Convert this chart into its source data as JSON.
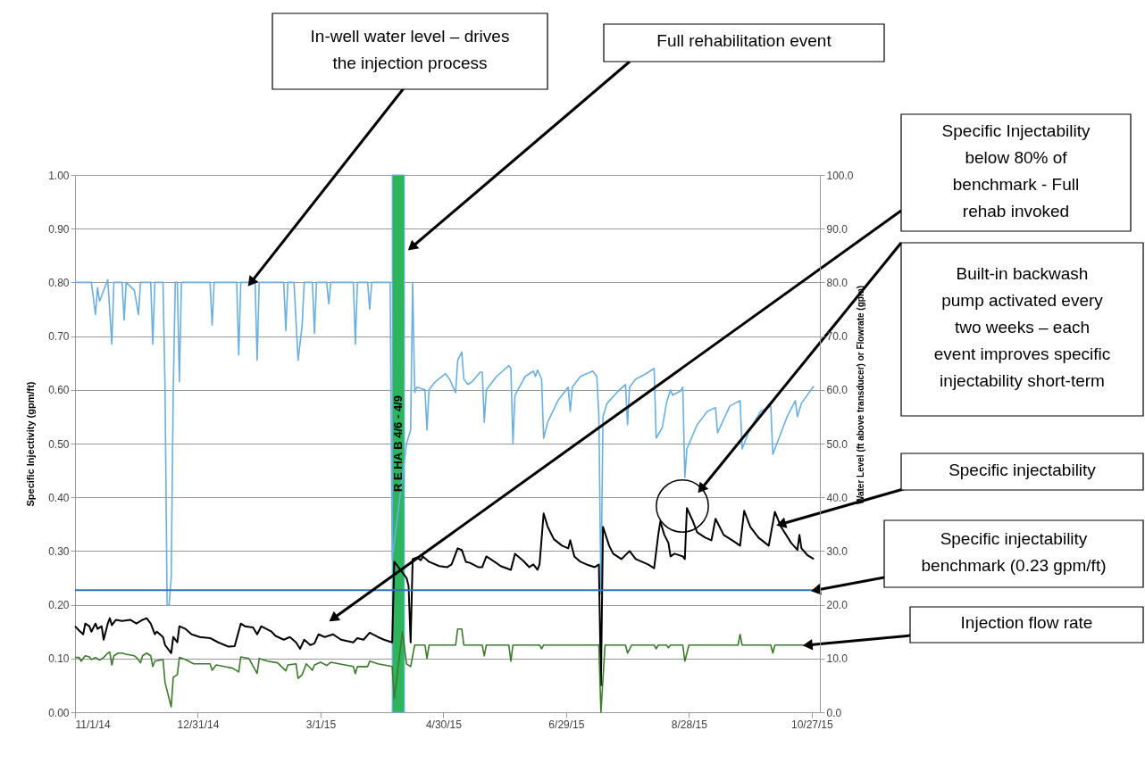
{
  "chart_data": {
    "type": "line",
    "ylabel": "Specific Injectivity (gpm/ft)",
    "y2label": "Water Level (ft above transducer) or Flowrate (gpm)",
    "xlim": [
      "2014-11-01",
      "2015-10-31"
    ],
    "xticks": [
      {
        "value": "2014-11-01",
        "label": "11/1/14"
      },
      {
        "value": "2014-12-31",
        "label": "12/31/14"
      },
      {
        "value": "2015-03-01",
        "label": "3/1/15"
      },
      {
        "value": "2015-04-30",
        "label": "4/30/15"
      },
      {
        "value": "2015-06-29",
        "label": "6/29/15"
      },
      {
        "value": "2015-08-28",
        "label": "8/28/15"
      },
      {
        "value": "2015-10-27",
        "label": "10/27/15"
      }
    ],
    "ylim": [
      0,
      1
    ],
    "yticks": [
      {
        "value": 0,
        "label": "0.00"
      },
      {
        "value": 0.1,
        "label": "0.10"
      },
      {
        "value": 0.2,
        "label": "0.20"
      },
      {
        "value": 0.3,
        "label": "0.30"
      },
      {
        "value": 0.4,
        "label": "0.40"
      },
      {
        "value": 0.5,
        "label": "0.50"
      },
      {
        "value": 0.6,
        "label": "0.60"
      },
      {
        "value": 0.7,
        "label": "0.70"
      },
      {
        "value": 0.8,
        "label": "0.80"
      },
      {
        "value": 0.9,
        "label": "0.90"
      },
      {
        "value": 1,
        "label": "1.00"
      }
    ],
    "y2lim": [
      0,
      100
    ],
    "y2ticks": [
      {
        "value": 0,
        "label": "0.0"
      },
      {
        "value": 10,
        "label": "10.0"
      },
      {
        "value": 20,
        "label": "20.0"
      },
      {
        "value": 30,
        "label": "30.0"
      },
      {
        "value": 40,
        "label": "40.0"
      },
      {
        "value": 50,
        "label": "50.0"
      },
      {
        "value": 60,
        "label": "60.0"
      },
      {
        "value": 70,
        "label": "70.0"
      },
      {
        "value": 80,
        "label": "80.0"
      },
      {
        "value": 90,
        "label": "90.0"
      },
      {
        "value": 100,
        "label": "100.0"
      }
    ],
    "grid": "y",
    "marker": "none",
    "line_style": "solid",
    "series": [
      {
        "color": "#6aafe0",
        "axis": "y2",
        "x": [
          "2014-11-01",
          "2014-11-09",
          "2014-11-11",
          "2014-11-12",
          "2014-11-13",
          "2014-11-15",
          "2014-11-17",
          "2014-11-19",
          "2014-11-20",
          "2014-11-24",
          "2014-11-25",
          "2014-11-26",
          "2014-11-30",
          "2014-12-02",
          "2014-12-03",
          "2014-12-08",
          "2014-12-09",
          "2014-12-10",
          "2014-12-14",
          "2014-12-15",
          "2014-12-16",
          "2014-12-17",
          "2014-12-18",
          "2014-12-19",
          "2014-12-20",
          "2014-12-21",
          "2014-12-22",
          "2014-12-23",
          "2015-01-06",
          "2015-01-07",
          "2015-01-08",
          "2015-01-19",
          "2015-01-20",
          "2015-01-21",
          "2015-01-28",
          "2015-01-29",
          "2015-01-30",
          "2015-02-11",
          "2015-02-12",
          "2015-02-13",
          "2015-02-16",
          "2015-02-18",
          "2015-02-20",
          "2015-02-21",
          "2015-02-25",
          "2015-02-26",
          "2015-02-27",
          "2015-03-04",
          "2015-03-05",
          "2015-03-06",
          "2015-03-17",
          "2015-03-18",
          "2015-03-19",
          "2015-03-24",
          "2015-03-25",
          "2015-03-26",
          "2015-04-04",
          "2015-04-05",
          "2015-04-12",
          "2015-04-14",
          "2015-04-15",
          "2015-04-16",
          "2015-04-17",
          "2015-04-21",
          "2015-04-22",
          "2015-04-23",
          "2015-04-26",
          "2015-05-01",
          "2015-05-03",
          "2015-05-06",
          "2015-05-07",
          "2015-05-09",
          "2015-05-10",
          "2015-05-12",
          "2015-05-14",
          "2015-05-18",
          "2015-05-19",
          "2015-05-20",
          "2015-05-21",
          "2015-05-26",
          "2015-06-01",
          "2015-06-02",
          "2015-06-03",
          "2015-06-04",
          "2015-06-09",
          "2015-06-13",
          "2015-06-14",
          "2015-06-15",
          "2015-06-17",
          "2015-06-18",
          "2015-06-20",
          "2015-06-25",
          "2015-06-30",
          "2015-07-01",
          "2015-07-02",
          "2015-07-06",
          "2015-07-12",
          "2015-07-14",
          "2015-07-15",
          "2015-07-16",
          "2015-07-17",
          "2015-07-19",
          "2015-07-25",
          "2015-07-28",
          "2015-07-29",
          "2015-07-30",
          "2015-08-02",
          "2015-08-07",
          "2015-08-11",
          "2015-08-12",
          "2015-08-15",
          "2015-08-17",
          "2015-08-19",
          "2015-08-20",
          "2015-08-24",
          "2015-08-25",
          "2015-08-26",
          "2015-08-27",
          "2015-09-01",
          "2015-09-06",
          "2015-09-10",
          "2015-09-11",
          "2015-09-14",
          "2015-09-17",
          "2015-09-22",
          "2015-09-23",
          "2015-09-26",
          "2015-10-02",
          "2015-10-07",
          "2015-10-08",
          "2015-10-10",
          "2015-10-15",
          "2015-10-19",
          "2015-10-20",
          "2015-10-22",
          "2015-10-28"
        ],
        "values": [
          80,
          80,
          74,
          79,
          76.5,
          78.5,
          80.5,
          68.5,
          80,
          80,
          73,
          80,
          78.5,
          74,
          80,
          80,
          68.5,
          80,
          80,
          60,
          20,
          20,
          25,
          60,
          80,
          80,
          61.5,
          80,
          80,
          72,
          80,
          80,
          66.5,
          80,
          80,
          65.5,
          80,
          80,
          71,
          80,
          80,
          65.5,
          72,
          80,
          80,
          70.5,
          80,
          80,
          76,
          80,
          80,
          68.5,
          80,
          80,
          75,
          80,
          80,
          28.5,
          50,
          52.5,
          80,
          59.5,
          60.5,
          60,
          52.5,
          60,
          61.5,
          63,
          62,
          59.5,
          65.5,
          67,
          62,
          61,
          61.5,
          63.3,
          63.3,
          54,
          60,
          62.5,
          64.5,
          64,
          50,
          59,
          62.5,
          63.5,
          62.5,
          63.7,
          62,
          51,
          54,
          58,
          60.5,
          56,
          60.5,
          62.5,
          63.5,
          62.5,
          55,
          22,
          55,
          57.5,
          60,
          61,
          53.5,
          60.5,
          62,
          63,
          64,
          51,
          53,
          57.5,
          60,
          59,
          59.8,
          60.5,
          43.7,
          49,
          53.5,
          56,
          56.7,
          52,
          54.5,
          57,
          58,
          49,
          52,
          56,
          57,
          48,
          50,
          55,
          58,
          55,
          57.5,
          60.7
        ]
      },
      {
        "color": "#000000",
        "x": [
          "2014-11-01",
          "2014-11-03",
          "2014-11-05",
          "2014-11-06",
          "2014-11-08",
          "2014-11-09",
          "2014-11-11",
          "2014-11-12",
          "2014-11-14",
          "2014-11-15",
          "2014-11-17",
          "2014-11-18",
          "2014-11-19",
          "2014-11-21",
          "2014-11-24",
          "2014-11-28",
          "2014-12-01",
          "2014-12-04",
          "2014-12-06",
          "2014-12-08",
          "2014-12-10",
          "2014-12-11",
          "2014-12-14",
          "2014-12-15",
          "2014-12-18",
          "2014-12-19",
          "2014-12-21",
          "2014-12-22",
          "2014-12-25",
          "2014-12-28",
          "2015-01-01",
          "2015-01-06",
          "2015-01-10",
          "2015-01-15",
          "2015-01-18",
          "2015-01-21",
          "2015-01-23",
          "2015-01-27",
          "2015-01-29",
          "2015-01-31",
          "2015-02-05",
          "2015-02-07",
          "2015-02-11",
          "2015-02-14",
          "2015-02-17",
          "2015-02-19",
          "2015-02-21",
          "2015-02-24",
          "2015-02-26",
          "2015-02-28",
          "2015-03-03",
          "2015-03-07",
          "2015-03-11",
          "2015-03-17",
          "2015-03-19",
          "2015-03-22",
          "2015-03-25",
          "2015-03-29",
          "2015-04-01",
          "2015-04-05",
          "2015-04-06",
          "2015-04-12",
          "2015-04-13",
          "2015-04-14",
          "2015-04-15",
          "2015-04-17",
          "2015-04-19",
          "2015-04-20",
          "2015-04-23",
          "2015-04-28",
          "2015-05-02",
          "2015-05-04",
          "2015-05-07",
          "2015-05-09",
          "2015-05-11",
          "2015-05-13",
          "2015-05-17",
          "2015-05-19",
          "2015-05-21",
          "2015-05-25",
          "2015-05-28",
          "2015-06-02",
          "2015-06-04",
          "2015-06-08",
          "2015-06-11",
          "2015-06-13",
          "2015-06-15",
          "2015-06-16",
          "2015-06-18",
          "2015-06-20",
          "2015-06-23",
          "2015-06-27",
          "2015-06-30",
          "2015-07-01",
          "2015-07-03",
          "2015-07-06",
          "2015-07-09",
          "2015-07-13",
          "2015-07-15",
          "2015-07-16",
          "2015-07-17",
          "2015-07-20",
          "2015-07-22",
          "2015-07-26",
          "2015-07-30",
          "2015-08-02",
          "2015-08-08",
          "2015-08-11",
          "2015-08-13",
          "2015-08-14",
          "2015-08-16",
          "2015-08-18",
          "2015-08-19",
          "2015-08-21",
          "2015-08-25",
          "2015-08-26",
          "2015-08-27",
          "2015-08-30",
          "2015-09-01",
          "2015-09-05",
          "2015-09-08",
          "2015-09-10",
          "2015-09-14",
          "2015-09-19",
          "2015-09-22",
          "2015-09-24",
          "2015-09-27",
          "2015-10-01",
          "2015-10-06",
          "2015-10-09",
          "2015-10-12",
          "2015-10-17",
          "2015-10-20",
          "2015-10-21",
          "2015-10-22",
          "2015-10-25",
          "2015-10-28"
        ],
        "values": [
          0.16,
          0.152,
          0.145,
          0.165,
          0.16,
          0.15,
          0.165,
          0.155,
          0.16,
          0.135,
          0.165,
          0.175,
          0.162,
          0.172,
          0.17,
          0.172,
          0.165,
          0.172,
          0.175,
          0.165,
          0.145,
          0.15,
          0.14,
          0.125,
          0.11,
          0.14,
          0.13,
          0.16,
          0.155,
          0.145,
          0.14,
          0.138,
          0.13,
          0.122,
          0.123,
          0.165,
          0.16,
          0.158,
          0.145,
          0.16,
          0.15,
          0.142,
          0.135,
          0.14,
          0.13,
          0.118,
          0.135,
          0.125,
          0.128,
          0.145,
          0.14,
          0.145,
          0.135,
          0.13,
          0.138,
          0.135,
          0.148,
          0.14,
          0.135,
          0.13,
          0.28,
          0.25,
          0.235,
          0.13,
          0.285,
          0.288,
          0.283,
          0.29,
          0.28,
          0.272,
          0.27,
          0.275,
          0.305,
          0.302,
          0.28,
          0.278,
          0.27,
          0.27,
          0.29,
          0.28,
          0.272,
          0.265,
          0.295,
          0.282,
          0.27,
          0.275,
          0.265,
          0.275,
          0.37,
          0.345,
          0.322,
          0.31,
          0.305,
          0.32,
          0.29,
          0.28,
          0.275,
          0.27,
          0.275,
          0.05,
          0.345,
          0.31,
          0.295,
          0.285,
          0.3,
          0.285,
          0.275,
          0.268,
          0.33,
          0.355,
          0.33,
          0.315,
          0.29,
          0.295,
          0.29,
          0.285,
          0.38,
          0.355,
          0.335,
          0.325,
          0.32,
          0.36,
          0.33,
          0.318,
          0.31,
          0.375,
          0.345,
          0.325,
          0.31,
          0.373,
          0.345,
          0.315,
          0.302,
          0.33,
          0.305,
          0.292,
          0.285
        ]
      },
      {
        "color": "#3a7a2a",
        "axis": "y2",
        "x": [
          "2014-11-01",
          "2014-11-03",
          "2014-11-04",
          "2014-11-06",
          "2014-11-08",
          "2014-11-09",
          "2014-11-11",
          "2014-11-13",
          "2014-11-15",
          "2014-11-17",
          "2014-11-18",
          "2014-11-19",
          "2014-11-20",
          "2014-11-22",
          "2014-11-24",
          "2014-11-26",
          "2014-11-30",
          "2014-12-01",
          "2014-12-03",
          "2014-12-04",
          "2014-12-06",
          "2014-12-08",
          "2014-12-09",
          "2014-12-10",
          "2014-12-14",
          "2014-12-15",
          "2014-12-18",
          "2014-12-19",
          "2014-12-21",
          "2014-12-22",
          "2014-12-25",
          "2014-12-29",
          "2015-01-06",
          "2015-01-07",
          "2015-01-09",
          "2015-01-17",
          "2015-01-20",
          "2015-01-21",
          "2015-01-25",
          "2015-01-29",
          "2015-01-30",
          "2015-02-03",
          "2015-02-08",
          "2015-02-12",
          "2015-02-13",
          "2015-02-17",
          "2015-02-18",
          "2015-02-20",
          "2015-02-22",
          "2015-02-25",
          "2015-02-26",
          "2015-03-01",
          "2015-03-04",
          "2015-03-06",
          "2015-03-10",
          "2015-03-17",
          "2015-03-18",
          "2015-03-19",
          "2015-03-24",
          "2015-03-25",
          "2015-03-29",
          "2015-04-05",
          "2015-04-06",
          "2015-04-10",
          "2015-04-12",
          "2015-04-14",
          "2015-04-16",
          "2015-04-21",
          "2015-04-22",
          "2015-04-23",
          "2015-05-06",
          "2015-05-07",
          "2015-05-09",
          "2015-05-10",
          "2015-05-19",
          "2015-05-20",
          "2015-05-21",
          "2015-06-01",
          "2015-06-02",
          "2015-06-03",
          "2015-06-16",
          "2015-06-17",
          "2015-06-18",
          "2015-07-15",
          "2015-07-16",
          "2015-07-18",
          "2015-07-28",
          "2015-07-29",
          "2015-07-31",
          "2015-08-11",
          "2015-08-12",
          "2015-08-13",
          "2015-08-17",
          "2015-08-18",
          "2015-08-19",
          "2015-08-25",
          "2015-08-26",
          "2015-08-28",
          "2015-09-21",
          "2015-09-22",
          "2015-09-23",
          "2015-10-07",
          "2015-10-08",
          "2015-10-09",
          "2015-10-28"
        ],
        "values": [
          10.2,
          10.2,
          9.5,
          10.5,
          10.3,
          9.8,
          10.2,
          9.7,
          10.2,
          11,
          11.2,
          8.8,
          10.5,
          11,
          11,
          10.8,
          10.5,
          10.2,
          9.2,
          10.5,
          11,
          10.5,
          8.5,
          9.5,
          9.8,
          5.5,
          1,
          6.5,
          7,
          10.2,
          9.8,
          9,
          9,
          7.8,
          8.8,
          8.2,
          7.5,
          10.3,
          10,
          7.2,
          10,
          9.5,
          9.2,
          7.7,
          8.8,
          9,
          6.3,
          7,
          9,
          7.8,
          8.8,
          9.3,
          8.7,
          9.3,
          9,
          8.5,
          7.2,
          8.5,
          8.5,
          9.5,
          9,
          8.5,
          2.5,
          15,
          9,
          8.5,
          12.5,
          12.5,
          10,
          12.5,
          12.5,
          15.5,
          15.5,
          12.5,
          12.5,
          10.5,
          12.5,
          12.5,
          9.5,
          12.5,
          12.5,
          11.8,
          12.5,
          12.5,
          0,
          12.5,
          12.5,
          11,
          12.5,
          12.5,
          11.8,
          12.5,
          12.5,
          12,
          12.5,
          12.5,
          9.5,
          12.5,
          12.5,
          14.5,
          12.5,
          12.5,
          11,
          12.5,
          12.5
        ]
      }
    ],
    "ref_lines": [
      {
        "axis": "y",
        "value": 0.227,
        "color": "#2e75b6"
      }
    ],
    "bands": [
      {
        "axis": "x",
        "from": "2015-04-05",
        "to": "2015-04-11",
        "label": "R E HA B 4/6 - 4/9",
        "color": "#2db55d"
      }
    ],
    "annotations": [
      {
        "text": "In-well water level – drives\nthe injection process",
        "x": "2015-01-26",
        "y": 0.8
      },
      "Full rehabilitation event",
      "Specific Injectability\nbelow 80% of\nbenchmark - Full\nrehab invoked",
      "Built-in backwash\npump activated every\ntwo weeks – each\nevent improves specific\ninjectability short-term",
      {
        "text": "Specific injectability",
        "x": "2015-10-12",
        "y": 0.35
      },
      {
        "text": "Specific injectability\nbenchmark (0.23 gpm/ft)",
        "x": "2015-10-29",
        "y": 0.227
      },
      {
        "text": "Injection flow rate",
        "x": "2015-10-25",
        "y": 0.125
      }
    ]
  }
}
